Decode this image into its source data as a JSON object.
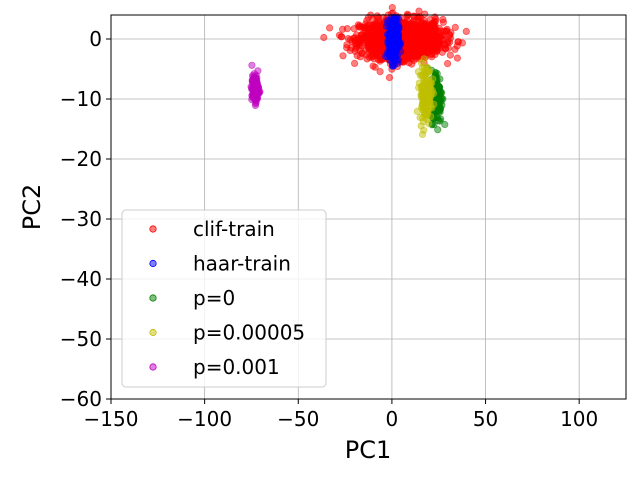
{
  "chart_data": {
    "type": "scatter",
    "title": "",
    "xlabel": "PC1",
    "ylabel": "PC2",
    "xlim": [
      -150,
      125
    ],
    "ylim": [
      -60,
      4
    ],
    "xticks": [
      -150,
      -100,
      -50,
      0,
      50,
      100
    ],
    "yticks": [
      0,
      -10,
      -20,
      -30,
      -40,
      -50,
      -60
    ],
    "xtick_labels": [
      "−150",
      "−100",
      "−50",
      "0",
      "50",
      "100"
    ],
    "ytick_labels": [
      "0",
      "−10",
      "−20",
      "−30",
      "−40",
      "−50",
      "−60"
    ],
    "grid": true,
    "legend": {
      "placement": "lower-left"
    },
    "series": [
      {
        "name": "clif-train",
        "color": "#ff0000",
        "cluster": {
          "center": [
            5,
            0
          ],
          "spread": [
            11,
            1.6
          ],
          "points": 1400
        }
      },
      {
        "name": "haar-train",
        "color": "#0000ff",
        "cluster": {
          "center": [
            1,
            -0.2
          ],
          "spread": [
            1.3,
            1.8
          ],
          "points": 300
        }
      },
      {
        "name": "p=0",
        "color": "#008000",
        "cluster": {
          "center": [
            24,
            -9.5
          ],
          "spread": [
            1.5,
            2.2
          ],
          "points": 150
        }
      },
      {
        "name": "p=0.00005",
        "color": "#bfbf00",
        "cluster": {
          "center": [
            18,
            -9
          ],
          "spread": [
            1.6,
            2.3
          ],
          "points": 160
        }
      },
      {
        "name": "p=0.001",
        "color": "#bf00bf",
        "cluster": {
          "center": [
            -73,
            -8.3
          ],
          "spread": [
            0.9,
            1.1
          ],
          "points": 150
        }
      }
    ]
  }
}
